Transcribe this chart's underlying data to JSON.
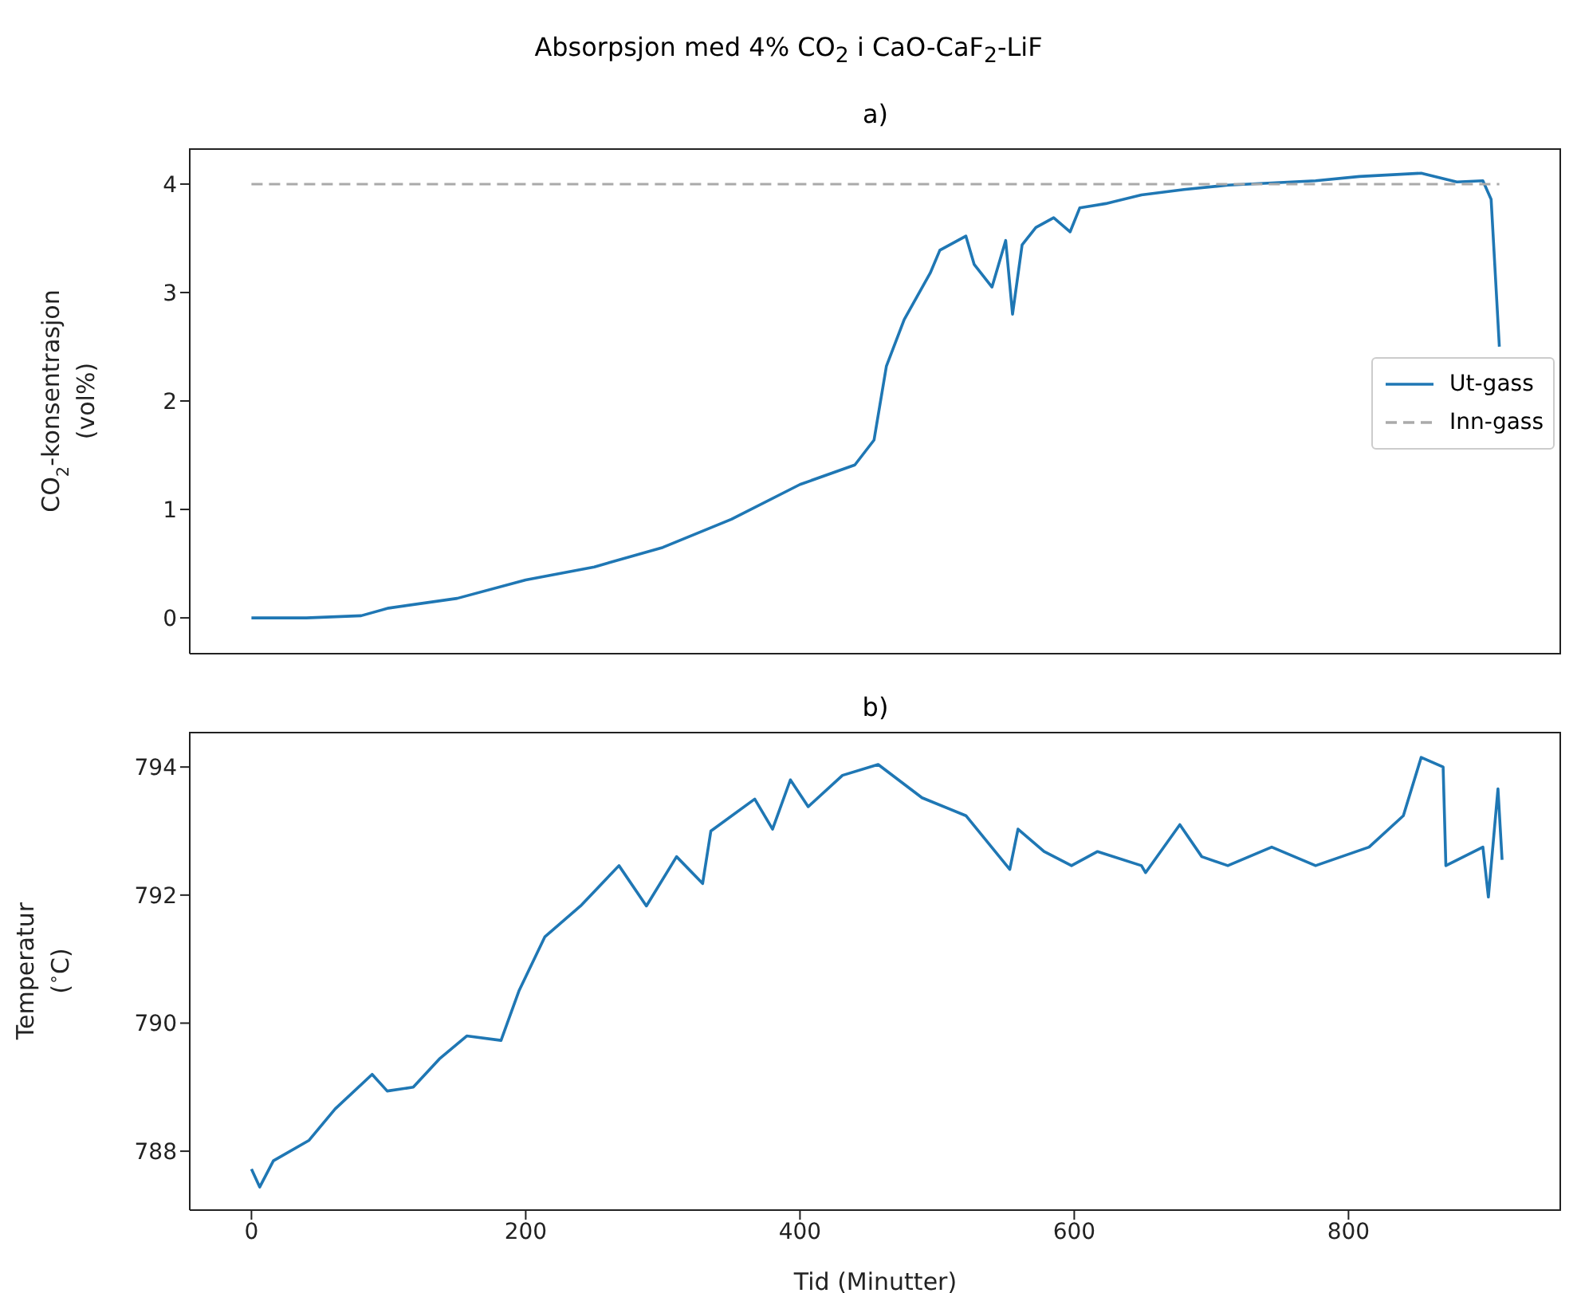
{
  "chart_data": [
    {
      "type": "line",
      "title": "Absorpsjon med 4% CO$_{2}$ i CaO-CaF$_{2}$-LiF",
      "subtitle": "a)",
      "ylabel": "CO$_{2}$-konsentrasjon\n(vol%)",
      "xlim": [
        -45,
        955
      ],
      "xticks": [
        0,
        200,
        400,
        600,
        800
      ],
      "ylim": [
        -0.33,
        4.33
      ],
      "yticks": [
        0,
        1,
        2,
        3,
        4
      ],
      "tick_labels": "y",
      "legend": "right",
      "marker": "none",
      "series": [
        {
          "name": "Ut-gass",
          "color": "#1f77b4",
          "line_style": "solid",
          "x": [
            0,
            40,
            80,
            100,
            150,
            200,
            250,
            300,
            350,
            400,
            440,
            454,
            463,
            476,
            495,
            502,
            521,
            527,
            540,
            550,
            555,
            562,
            572,
            585,
            597,
            604,
            623,
            649,
            680,
            712,
            776,
            808,
            853,
            879,
            898,
            904,
            910
          ],
          "values": [
            0,
            0,
            0.02,
            0.09,
            0.18,
            0.35,
            0.47,
            0.65,
            0.91,
            1.23,
            1.41,
            1.64,
            2.32,
            2.75,
            3.18,
            3.39,
            3.52,
            3.26,
            3.05,
            3.48,
            2.8,
            3.44,
            3.6,
            3.69,
            3.56,
            3.78,
            3.82,
            3.9,
            3.95,
            3.99,
            4.03,
            4.07,
            4.1,
            4.02,
            4.03,
            3.86,
            2.5
          ]
        },
        {
          "name": "Inn-gass",
          "color": "#aaaaaa",
          "line_style": "dashed",
          "x": [
            0,
            910
          ],
          "values": [
            4,
            4
          ]
        }
      ]
    },
    {
      "type": "line",
      "subtitle": "b)",
      "xlabel": "Tid (Minutter)",
      "ylabel": "Temperatur\n($^{∘}$C)",
      "xlim": [
        -45,
        955
      ],
      "xticks": [
        0,
        200,
        400,
        600,
        800
      ],
      "ylim": [
        787.08,
        794.55
      ],
      "yticks": [
        788,
        790,
        792,
        794
      ],
      "marker": "none",
      "series": [
        {
          "color": "#1f77b4",
          "line_style": "solid",
          "x": [
            0,
            6,
            16,
            42,
            61,
            88,
            99,
            118,
            137,
            157,
            182,
            195,
            214,
            240,
            268,
            288,
            310,
            329,
            335,
            367,
            380,
            393,
            406,
            431,
            457,
            489,
            521,
            553,
            559,
            578,
            598,
            617,
            649,
            652,
            677,
            693,
            712,
            744,
            776,
            815,
            840,
            853,
            869,
            871,
            898,
            902,
            909,
            912
          ],
          "values": [
            787.72,
            787.44,
            787.85,
            788.17,
            788.66,
            789.2,
            788.94,
            789.0,
            789.44,
            789.8,
            789.73,
            790.5,
            791.35,
            791.83,
            792.46,
            791.83,
            792.6,
            792.18,
            793.0,
            793.5,
            793.03,
            793.8,
            793.38,
            793.87,
            794.04,
            793.52,
            793.24,
            792.4,
            793.03,
            792.68,
            792.46,
            792.68,
            792.46,
            792.35,
            793.1,
            792.6,
            792.46,
            792.75,
            792.46,
            792.75,
            793.24,
            794.15,
            794.0,
            792.46,
            792.75,
            791.97,
            793.66,
            792.55
          ]
        }
      ]
    }
  ]
}
